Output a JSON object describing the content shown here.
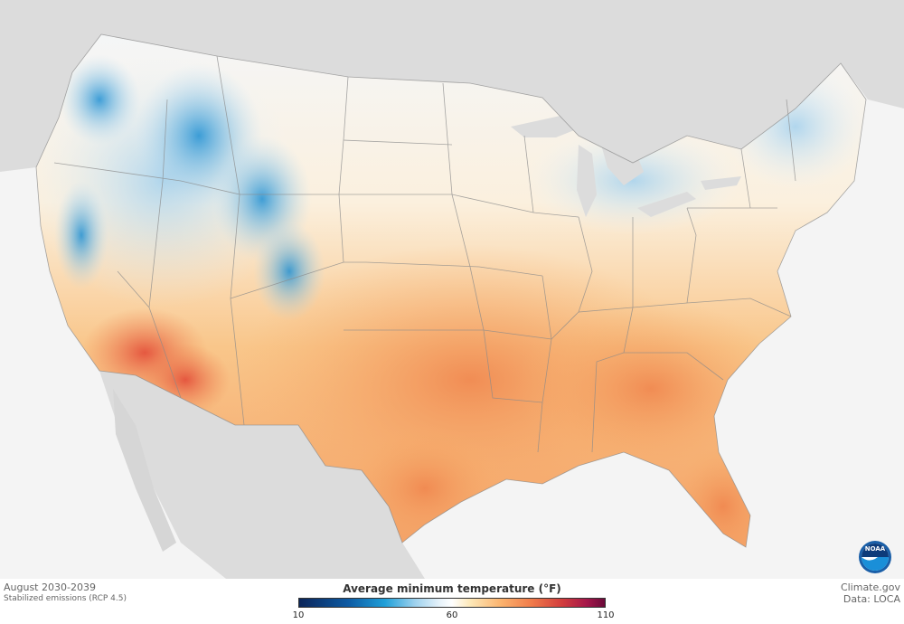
{
  "map": {
    "period": "August 2030-2039",
    "scenario": "Stabilized emissions (RCP 4.5)",
    "credit_site": "Climate.gov",
    "credit_data": "Data: LOCA"
  },
  "legend": {
    "title": "Average minimum temperature (°F)",
    "min_label": "10",
    "mid_label": "60",
    "max_label": "110",
    "colors": [
      "#0b2559",
      "#0d5aa3",
      "#1f9fd8",
      "#9fd2ee",
      "#ffffff",
      "#fde8b8",
      "#fbb36e",
      "#f07b4a",
      "#d23d3d",
      "#6b0a3a"
    ]
  },
  "logo": {
    "text": "NOAA"
  }
}
